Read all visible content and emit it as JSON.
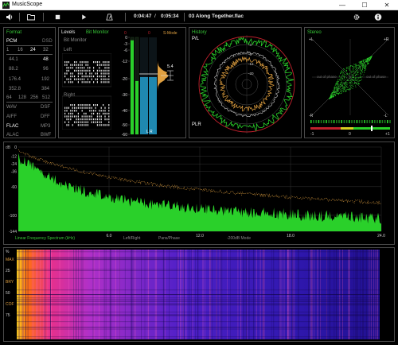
{
  "window": {
    "title": "MusicScope",
    "minimize": "—",
    "maximize": "☐",
    "close": "✕"
  },
  "toolbar": {
    "icons": [
      "speaker-icon",
      "folder-icon",
      "stop-icon",
      "play-icon",
      "metronome-icon"
    ],
    "elapsed": "0:04:47",
    "divider": "/",
    "total": "0:05:34",
    "track": "03 Along Together.flac"
  },
  "format": {
    "title": "Format",
    "pcm": "PCM",
    "dsd": "DSD",
    "bits": [
      "1",
      "16",
      "24",
      "32"
    ],
    "left_rates": [
      "44.1",
      "88.2",
      "176.4",
      "352.8"
    ],
    "right_rates": [
      "48",
      "96",
      "192",
      "384"
    ],
    "dsd_rates": [
      "64",
      "128",
      "256",
      "512"
    ],
    "formats_left": [
      "WAV",
      "AIFF",
      "FLAC",
      "ALAC"
    ],
    "formats_right": [
      "DSF",
      "DFF",
      "MP3",
      "BWF"
    ]
  },
  "levels": {
    "title": "Levels",
    "mode": "Bit Monitor",
    "sub": "Bit Monitor",
    "left": "Left",
    "right": "Right",
    "meter_ticks": [
      "0",
      "-3",
      "-6",
      "-12",
      "-20",
      "-30",
      "-40",
      "-50",
      "-60"
    ],
    "top_marks": [
      "0",
      "0"
    ],
    "s_mode": "S-Mode",
    "peak_value": "5.4",
    "lr": "L R",
    "bar_l_level": 0.97,
    "bar_r_level": 0.55
  },
  "history": {
    "title": "History",
    "pl": "P/L",
    "plr": "PLR",
    "ticks": [
      "-3",
      "-6",
      "-12",
      "-20",
      "-30"
    ]
  },
  "stereo": {
    "title": "Stereo",
    "plus_l": "+L",
    "plus_r": "+R",
    "minus_l": "-R",
    "minus_r": "-L",
    "oop1": "out of phase",
    "oop2": "out of phase",
    "scale": [
      "-1",
      "0",
      "+1"
    ]
  },
  "spectrum": {
    "db_label": "dB",
    "y_ticks": [
      "0",
      "-12",
      "-24",
      "-36",
      "-60",
      "-100",
      "-144"
    ],
    "x_ticks": [
      "6.0",
      "12.0",
      "18.0",
      "24.0"
    ],
    "legend": "Linear Frequency Spectrum (kHz)",
    "options": [
      "Left/Right",
      "Pans/Phase",
      "-200dB Mode"
    ]
  },
  "spectrogram": {
    "y_ticks": [
      "%",
      "MAX",
      "25",
      "BRY",
      "50",
      "COF",
      "75"
    ]
  },
  "colors": {
    "green": "#37c837",
    "accent": "#2ad02a",
    "orange": "#e0a040",
    "red": "#c0202c"
  }
}
